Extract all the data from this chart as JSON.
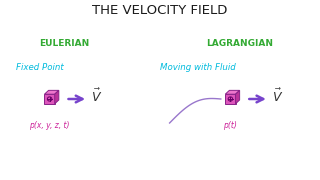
{
  "title": "THE VELOCITY FIELD",
  "title_color": "#1a1a1a",
  "title_fontsize": 9.5,
  "eulerian_label": "EULERIAN",
  "lagrangian_label": "LAGRANGIAN",
  "section_color": "#33aa33",
  "fixed_point_label": "Fixed Point",
  "moving_label": "Moving with Fluid",
  "sub_label_color": "#00bbdd",
  "p_eulerian": "p(x, y, z, t)",
  "p_lagrangian": "p(t)",
  "p_color": "#cc2299",
  "background_color": "#ffffff",
  "cube_front_color": "#dd55bb",
  "cube_top_color": "#ee77cc",
  "cube_right_color": "#bb3399",
  "cube_edge_color": "#882288",
  "arrow_color": "#7744cc",
  "v_color": "#333333",
  "curve_color": "#9977cc"
}
